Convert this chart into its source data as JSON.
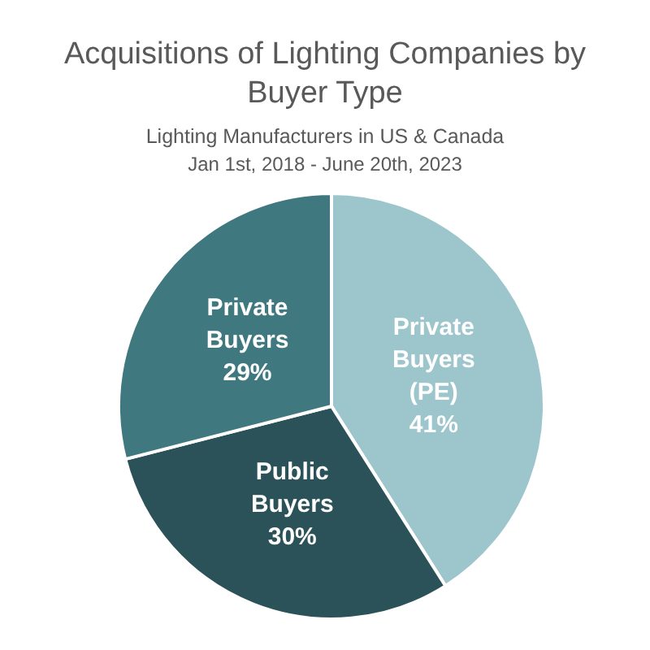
{
  "chart_data": {
    "type": "pie",
    "title": "Acquisitions of Lighting Companies by Buyer Type",
    "subtitle": "Lighting Manufacturers in US & Canada\nJan 1st, 2018 - June 20th, 2023",
    "categories": [
      "Private Buyers (PE)",
      "Public Buyers",
      "Private Buyers"
    ],
    "values": [
      41,
      30,
      29
    ],
    "colors": [
      "#9cc5cc",
      "#2b5258",
      "#3f787f"
    ],
    "value_labels": [
      "41%",
      "30%",
      "29%"
    ]
  }
}
